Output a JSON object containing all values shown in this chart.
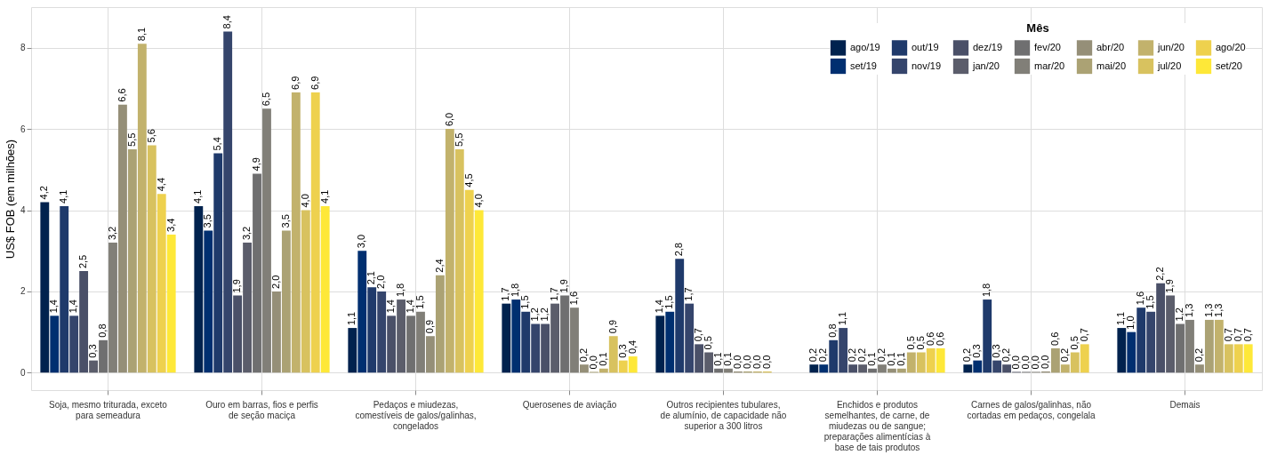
{
  "chart_data": {
    "type": "bar",
    "ylabel": "US$ FOB (em milhões)",
    "legend_title": "Mês",
    "legend": "top right",
    "grid": true,
    "categories": [
      "Soja, mesmo triturada, exceto para semeadura",
      "Ouro em barras, fios e perfis de seção maciça",
      "Pedaços e miudezas, comestíveis de galos/galinhas, congelados",
      "Querosenes de aviação",
      "Outros recipientes tubulares, de alumínio, de capacidade não superior a 300 litros",
      "Enchidos e produtos semelhantes, de carne, de miudezas ou de sangue; preparações alimentícias à base de tais produtos",
      "Carnes de galos/galinhas, não cortadas em pedaços, congelala",
      "Demais"
    ],
    "ylim": [
      -0.43,
      9.0
    ],
    "yticks": [
      0,
      2,
      4,
      6,
      8
    ],
    "series": [
      {
        "name": "ago/19",
        "color": "#00224e",
        "values": [
          4.2,
          4.1,
          1.1,
          1.7,
          1.4,
          0.2,
          0.2,
          1.1
        ],
        "value_labels": [
          "4,2",
          "4,1",
          "1,1",
          "1,7",
          "1,4",
          "0,2",
          "0,2",
          "1,1"
        ]
      },
      {
        "name": "set/19",
        "color": "#002f70",
        "values": [
          1.4,
          3.5,
          3.0,
          1.8,
          1.5,
          0.2,
          0.3,
          1.0
        ],
        "value_labels": [
          "1,4",
          "3,5",
          "3,0",
          "1,8",
          "1,5",
          "0,2",
          "0,3",
          "1,0"
        ]
      },
      {
        "name": "out/19",
        "color": "#1f3a6b",
        "values": [
          4.1,
          5.4,
          2.1,
          1.5,
          2.8,
          0.8,
          1.8,
          1.6
        ],
        "value_labels": [
          "4,1",
          "5,4",
          "2,1",
          "1,5",
          "2,8",
          "0,8",
          "1,8",
          "1,6"
        ]
      },
      {
        "name": "nov/19",
        "color": "#35456c",
        "values": [
          1.4,
          8.4,
          2.0,
          1.2,
          1.7,
          1.1,
          0.3,
          1.5
        ],
        "value_labels": [
          "1,4",
          "8,4",
          "2,0",
          "1,2",
          "1,7",
          "1,1",
          "0,3",
          "1,5"
        ]
      },
      {
        "name": "dez/19",
        "color": "#4a5068",
        "values": [
          2.5,
          1.9,
          1.4,
          1.2,
          0.7,
          0.2,
          0.2,
          2.2
        ],
        "value_labels": [
          "2,5",
          "1,9",
          "1,4",
          "1,2",
          "0,7",
          "0,2",
          "0,2",
          "2,2"
        ]
      },
      {
        "name": "jan/20",
        "color": "#5b5d6b",
        "values": [
          0.3,
          3.2,
          1.8,
          1.7,
          0.5,
          0.2,
          0.02,
          1.9
        ],
        "value_labels": [
          "0,3",
          "3,2",
          "1,8",
          "1,7",
          "0,5",
          "0,2",
          "0,0",
          "1,9"
        ]
      },
      {
        "name": "fev/20",
        "color": "#6f6f70",
        "values": [
          0.8,
          4.9,
          1.4,
          1.9,
          0.1,
          0.1,
          0.02,
          1.2
        ],
        "value_labels": [
          "0,8",
          "4,9",
          "1,4",
          "1,9",
          "0,1",
          "0,1",
          "0,0",
          "1,2"
        ]
      },
      {
        "name": "mar/20",
        "color": "#817f78",
        "values": [
          3.2,
          6.5,
          1.5,
          1.6,
          0.1,
          0.2,
          0.02,
          1.3
        ],
        "value_labels": [
          "3,2",
          "6,5",
          "1,5",
          "1,6",
          "0,1",
          "0,2",
          "0,0",
          "1,3"
        ]
      },
      {
        "name": "abr/20",
        "color": "#958f78",
        "values": [
          6.6,
          2.0,
          0.9,
          0.2,
          0.03,
          0.1,
          0.03,
          0.2
        ],
        "value_labels": [
          "6,6",
          "2,0",
          "0,9",
          "0,2",
          "0,0",
          "0,1",
          "0,0",
          "0,2"
        ]
      },
      {
        "name": "mai/20",
        "color": "#aba274",
        "values": [
          5.5,
          3.5,
          2.4,
          0.02,
          0.03,
          0.1,
          0.6,
          1.3
        ],
        "value_labels": [
          "5,5",
          "3,5",
          "2,4",
          "0,0",
          "0,0",
          "0,1",
          "0,6",
          "1,3"
        ]
      },
      {
        "name": "jun/20",
        "color": "#c2b26c",
        "values": [
          8.1,
          6.9,
          6.0,
          0.1,
          0.03,
          0.5,
          0.2,
          1.3
        ],
        "value_labels": [
          "8,1",
          "6,9",
          "6,0",
          "0,1",
          "0,0",
          "0,5",
          "0,2",
          "1,3"
        ]
      },
      {
        "name": "jul/20",
        "color": "#d8c25f",
        "values": [
          5.6,
          4.0,
          5.5,
          0.9,
          0.03,
          0.5,
          0.5,
          0.7
        ],
        "value_labels": [
          "5,6",
          "4,0",
          "5,5",
          "0,9",
          "0,0",
          "0,5",
          "0,5",
          "0,7"
        ]
      },
      {
        "name": "ago/20",
        "color": "#eed14e",
        "values": [
          4.4,
          6.9,
          4.5,
          0.3,
          null,
          0.6,
          0.7,
          0.7
        ],
        "value_labels": [
          "4,4",
          "6,9",
          "4,5",
          "0,3",
          null,
          "0,6",
          "0,7",
          "0,7"
        ]
      },
      {
        "name": "set/20",
        "color": "#fee838",
        "values": [
          3.4,
          4.1,
          4.0,
          0.4,
          null,
          0.6,
          null,
          0.7
        ],
        "value_labels": [
          "3,4",
          "4,1",
          "4,0",
          "0,4",
          null,
          "0,6",
          null,
          "0,7"
        ]
      }
    ]
  }
}
